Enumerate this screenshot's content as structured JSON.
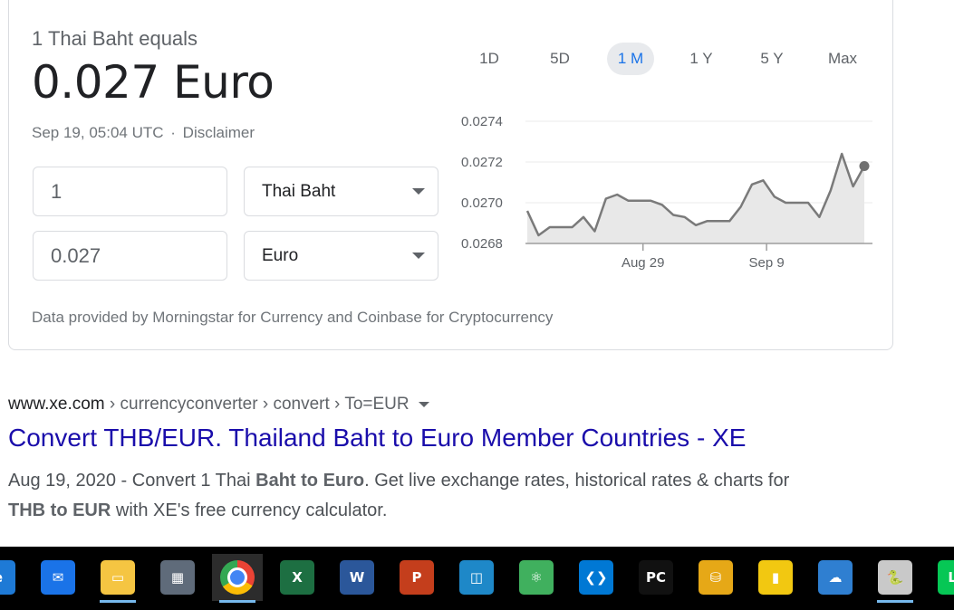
{
  "converter": {
    "equals_text": "1 Thai Baht equals",
    "rate_text": "0.027 Euro",
    "timestamp": "Sep 19, 05:04 UTC",
    "separator": "·",
    "disclaimer": "Disclaimer",
    "from_amount": "1",
    "from_currency": "Thai Baht",
    "to_amount": "0.027",
    "to_currency": "Euro",
    "ranges": [
      "1D",
      "5D",
      "1 M",
      "1 Y",
      "5 Y",
      "Max"
    ],
    "active_range": "1 M",
    "attribution": "Data provided by Morningstar for Currency and Coinbase for Cryptocurrency"
  },
  "chart_data": {
    "type": "area",
    "ylim": [
      0.0268,
      0.0274
    ],
    "y_ticks": [
      "0.0274",
      "0.0272",
      "0.0270",
      "0.0268"
    ],
    "x_tick_labels": [
      "Aug 29",
      "Sep 9"
    ],
    "grid": true,
    "series": [
      {
        "values": [
          0.02696,
          0.02684,
          0.02688,
          0.02688,
          0.02688,
          0.02693,
          0.02686,
          0.02702,
          0.02704,
          0.02701,
          0.02701,
          0.02701,
          0.02699,
          0.02694,
          0.02693,
          0.02689,
          0.02691,
          0.02691,
          0.02691,
          0.02698,
          0.02709,
          0.02711,
          0.02703,
          0.027,
          0.027,
          0.027,
          0.02693,
          0.02706,
          0.02724,
          0.02708,
          0.02718
        ]
      }
    ],
    "colors": {
      "line": "#7a7a7a",
      "fill": "#e8e8e8",
      "grid": "#ebebeb",
      "axis": "#9e9e9e"
    }
  },
  "result": {
    "cite_domain": "www.xe.com",
    "cite_path": " › currencyconverter › convert › To=EUR",
    "title": "Convert THB/EUR. Thailand Baht to Euro Member Countries - XE",
    "snippet_date": "Aug 19, 2020",
    "snippet_dash": " - Convert 1 Thai ",
    "snippet_bold1": "Baht to Euro",
    "snippet_text1": ". Get live exchange rates, historical rates & charts for ",
    "snippet_bold2": "THB to EUR",
    "snippet_text2": " with XE's free currency calculator."
  },
  "taskbar": {
    "apps": [
      {
        "name": "edge-icon",
        "label": "e",
        "color": "#1e7ad6"
      },
      {
        "name": "mail-icon",
        "label": "✉",
        "color": "#1a73e8"
      },
      {
        "name": "file-explorer-icon",
        "label": "▭",
        "color": "#f5c542"
      },
      {
        "name": "calculator-icon",
        "label": "▦",
        "color": "#5f6b7a"
      },
      {
        "name": "chrome-icon",
        "label": "●",
        "color": "#4285f4"
      },
      {
        "name": "excel-icon",
        "label": "X",
        "color": "#1d6f42"
      },
      {
        "name": "word-icon",
        "label": "W",
        "color": "#2b579a"
      },
      {
        "name": "powerpoint-icon",
        "label": "P",
        "color": "#c43e1c"
      },
      {
        "name": "app-window-icon",
        "label": "◫",
        "color": "#1e88c8"
      },
      {
        "name": "atom-icon",
        "label": "⚛",
        "color": "#40b05e"
      },
      {
        "name": "vscode-icon",
        "label": "❮❯",
        "color": "#0078d4"
      },
      {
        "name": "pycharm-icon",
        "label": "PC",
        "color": "#111111"
      },
      {
        "name": "database-tool-icon",
        "label": "⛁",
        "color": "#e6a817"
      },
      {
        "name": "power-bi-icon",
        "label": "▮",
        "color": "#f2c811"
      },
      {
        "name": "cloud-settings-icon",
        "label": "☁",
        "color": "#2f7fd1"
      },
      {
        "name": "python-file-icon",
        "label": "🐍",
        "color": "#c9c9c9"
      },
      {
        "name": "line-icon",
        "label": "LI",
        "color": "#06c755"
      }
    ]
  }
}
